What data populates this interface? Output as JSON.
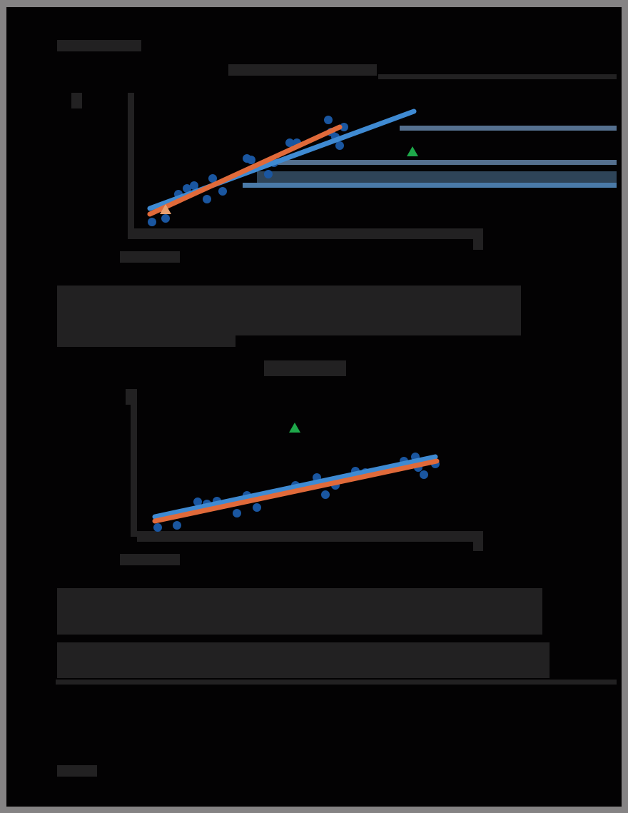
{
  "page": {
    "section_heading": "[redacted]",
    "page_number": "[redacted]",
    "paragraphs": [
      "[redacted paragraph 1]",
      "[redacted paragraph 2]",
      "[redacted paragraph 3]"
    ]
  },
  "colors": {
    "background": "#030203",
    "frame": "#858384",
    "redaction": "#222122",
    "series_points": "#1a56a0",
    "fit_line_blue": "#3f8ad2",
    "fit_line_orange": "#e06a3a",
    "outlier": "#1ea84a"
  },
  "chart_data": [
    {
      "type": "scatter",
      "title": "[redacted]",
      "xlabel": "[redacted]",
      "ylabel": "[redacted]",
      "grid": false,
      "series": [
        {
          "name": "points",
          "marker": "circle",
          "color": "#1a56a0",
          "x": [
            213,
            232,
            250,
            262,
            272,
            290,
            298,
            312,
            346,
            352,
            376,
            384,
            406,
            416,
            460,
            464,
            470,
            476,
            482
          ],
          "y": [
            311,
            306,
            272,
            264,
            260,
            279,
            250,
            268,
            222,
            224,
            244,
            228,
            200,
            200,
            168,
            185,
            192,
            204,
            178
          ]
        },
        {
          "name": "outlier",
          "marker": "triangle",
          "color": "#1ea84a",
          "x": [
            578
          ],
          "y": [
            213
          ]
        },
        {
          "name": "highlight",
          "marker": "triangle",
          "color": "#e8a070",
          "x": [
            232
          ],
          "y": [
            294
          ]
        }
      ],
      "fits": [
        {
          "name": "fit-all",
          "color": "#3f8ad2",
          "x1": 210,
          "y1": 292,
          "x2": 580,
          "y2": 156
        },
        {
          "name": "fit-excl",
          "color": "#e06a3a",
          "x1": 210,
          "y1": 300,
          "x2": 476,
          "y2": 178
        }
      ]
    },
    {
      "type": "scatter",
      "title": "[redacted]",
      "xlabel": "[redacted]",
      "ylabel": "[redacted]",
      "grid": false,
      "series": [
        {
          "name": "points",
          "marker": "circle",
          "color": "#1a56a0",
          "x": [
            221,
            248,
            277,
            290,
            304,
            332,
            346,
            360,
            414,
            444,
            456,
            470,
            498,
            512,
            566,
            582,
            586,
            594,
            610
          ],
          "y": [
            739,
            736,
            703,
            706,
            702,
            719,
            694,
            711,
            680,
            669,
            693,
            680,
            660,
            662,
            646,
            640,
            655,
            665,
            650
          ]
        },
        {
          "name": "outlier",
          "marker": "triangle",
          "color": "#1ea84a",
          "x": [
            413
          ],
          "y": [
            600
          ]
        }
      ],
      "fits": [
        {
          "name": "fit-all",
          "color": "#3f8ad2",
          "x1": 217,
          "y1": 724,
          "x2": 610,
          "y2": 640
        },
        {
          "name": "fit-excl",
          "color": "#e06a3a",
          "x1": 217,
          "y1": 730,
          "x2": 612,
          "y2": 646
        }
      ]
    }
  ]
}
